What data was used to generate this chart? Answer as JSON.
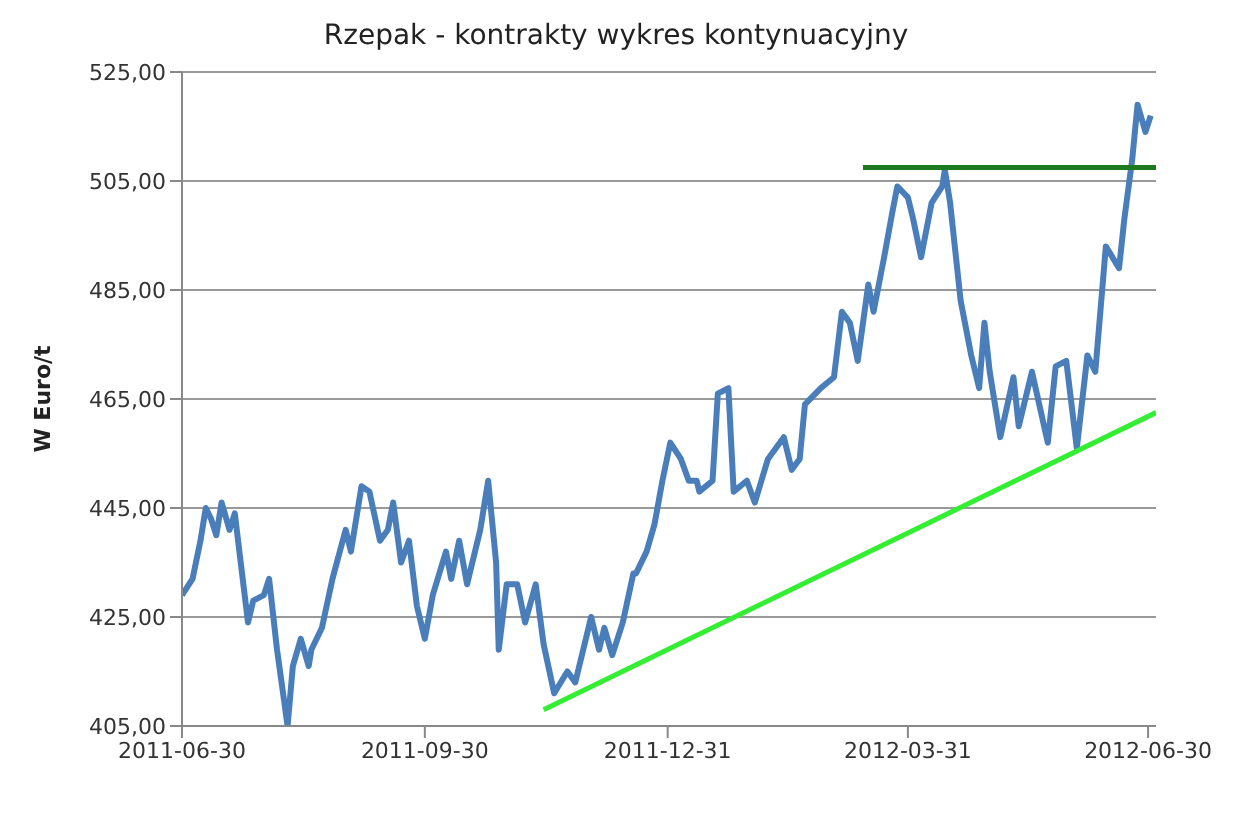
{
  "chart_data": {
    "type": "line",
    "title": "Rzepak - kontrakty wykres kontynuacyjny",
    "ylabel": "W Euro/t",
    "xlim": [
      "2011-06-30",
      "2012-07-03"
    ],
    "xticks": [
      "2011-06-30",
      "2011-09-30",
      "2011-12-31",
      "2012-03-31",
      "2012-06-30"
    ],
    "ylim": [
      405,
      525
    ],
    "yticks": [
      {
        "value": 405,
        "label": "405,00"
      },
      {
        "value": 425,
        "label": "425,00"
      },
      {
        "value": 445,
        "label": "445,00"
      },
      {
        "value": 465,
        "label": "465,00"
      },
      {
        "value": 485,
        "label": "485,00"
      },
      {
        "value": 505,
        "label": "505,00"
      },
      {
        "value": 525,
        "label": "525,00"
      }
    ],
    "grid": "y",
    "legend": false,
    "marker": "none",
    "line_style": "solid",
    "series": [
      {
        "color": "#4a7ebb",
        "x": [
          "2011-06-30",
          "2011-07-04",
          "2011-07-07",
          "2011-07-09",
          "2011-07-11",
          "2011-07-13",
          "2011-07-15",
          "2011-07-18",
          "2011-07-20",
          "2011-07-22",
          "2011-07-25",
          "2011-07-27",
          "2011-07-31",
          "2011-08-02",
          "2011-08-05",
          "2011-08-09",
          "2011-08-11",
          "2011-08-14",
          "2011-08-17",
          "2011-08-18",
          "2011-08-22",
          "2011-08-26",
          "2011-08-31",
          "2011-09-02",
          "2011-09-06",
          "2011-09-09",
          "2011-09-13",
          "2011-09-16",
          "2011-09-18",
          "2011-09-21",
          "2011-09-24",
          "2011-09-27",
          "2011-09-30",
          "2011-10-03",
          "2011-10-08",
          "2011-10-10",
          "2011-10-13",
          "2011-10-16",
          "2011-10-21",
          "2011-10-24",
          "2011-10-27",
          "2011-10-28",
          "2011-10-31",
          "2011-11-04",
          "2011-11-07",
          "2011-11-11",
          "2011-11-14",
          "2011-11-18",
          "2011-11-23",
          "2011-11-26",
          "2011-12-02",
          "2011-12-05",
          "2011-12-07",
          "2011-12-10",
          "2011-12-14",
          "2011-12-18",
          "2011-12-19",
          "2011-12-23",
          "2011-12-26",
          "2011-12-29",
          "2012-01-01",
          "2012-01-05",
          "2012-01-08",
          "2012-01-11",
          "2012-01-12",
          "2012-01-17",
          "2012-01-19",
          "2012-01-23",
          "2012-01-25",
          "2012-01-30",
          "2012-02-02",
          "2012-02-07",
          "2012-02-13",
          "2012-02-16",
          "2012-02-19",
          "2012-02-21",
          "2012-02-27",
          "2012-03-03",
          "2012-03-06",
          "2012-03-09",
          "2012-03-12",
          "2012-03-16",
          "2012-03-18",
          "2012-03-22",
          "2012-03-25",
          "2012-03-27",
          "2012-03-31",
          "2012-04-02",
          "2012-04-05",
          "2012-04-09",
          "2012-04-13",
          "2012-04-14",
          "2012-04-16",
          "2012-04-20",
          "2012-04-24",
          "2012-04-27",
          "2012-04-29",
          "2012-05-01",
          "2012-05-05",
          "2012-05-10",
          "2012-05-12",
          "2012-05-17",
          "2012-05-23",
          "2012-05-26",
          "2012-05-30",
          "2012-06-03",
          "2012-06-07",
          "2012-06-10",
          "2012-06-14",
          "2012-06-19",
          "2012-06-21",
          "2012-06-24",
          "2012-06-26",
          "2012-06-29",
          "2012-07-01"
        ],
        "values": [
          429,
          432,
          439,
          445,
          443,
          440,
          446,
          441,
          444,
          436,
          424,
          428,
          429,
          432,
          419,
          405,
          416,
          421,
          416,
          419,
          423,
          432,
          441,
          437,
          449,
          448,
          439,
          441,
          446,
          435,
          439,
          427,
          421,
          429,
          437,
          432,
          439,
          431,
          441,
          450,
          435,
          419,
          431,
          431,
          424,
          431,
          420,
          411,
          415,
          413,
          425,
          419,
          423,
          418,
          424,
          433,
          433,
          437,
          442,
          450,
          457,
          454,
          450,
          450,
          448,
          450,
          466,
          467,
          448,
          450,
          446,
          454,
          458,
          452,
          454,
          464,
          467,
          469,
          481,
          479,
          472,
          486,
          481,
          491,
          499,
          504,
          502,
          498,
          491,
          501,
          504,
          507,
          501,
          483,
          473,
          467,
          479,
          470,
          458,
          469,
          460,
          470,
          457,
          471,
          472,
          456,
          473,
          470,
          493,
          489,
          498,
          509,
          519,
          514,
          517
        ]
      },
      {
        "color": "#1e7a1e",
        "x": [
          "2012-03-14",
          "2012-07-03"
        ],
        "values": [
          507.5,
          507.5
        ]
      },
      {
        "color": "#33ee33",
        "x": [
          "2011-11-14",
          "2012-07-03"
        ],
        "values": [
          408,
          462.5
        ]
      }
    ]
  }
}
